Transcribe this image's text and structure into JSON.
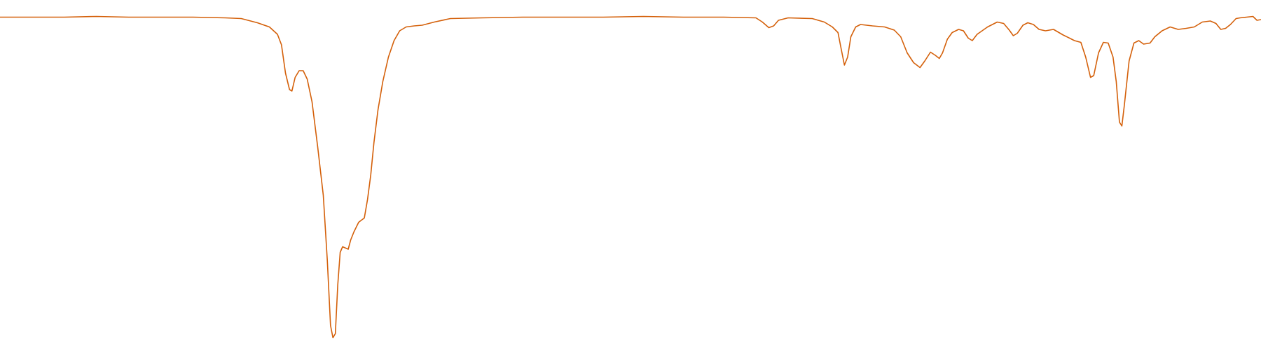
{
  "chart_data": {
    "type": "line",
    "x": [
      0,
      40,
      80,
      120,
      160,
      200,
      240,
      280,
      300,
      320,
      335,
      345,
      350,
      355,
      360,
      363,
      367,
      372,
      377,
      382,
      388,
      395,
      402,
      407,
      411,
      414,
      417,
      420,
      423,
      426,
      430,
      433,
      436,
      440,
      446,
      450,
      453,
      457,
      461,
      465,
      470,
      476,
      483,
      490,
      497,
      505,
      515,
      525,
      540,
      560,
      600,
      650,
      700,
      750,
      800,
      850,
      900,
      940,
      948,
      956,
      962,
      968,
      980,
      1010,
      1025,
      1035,
      1042,
      1046,
      1050,
      1054,
      1058,
      1064,
      1070,
      1085,
      1100,
      1112,
      1120,
      1128,
      1136,
      1144,
      1150,
      1157,
      1163,
      1168,
      1172,
      1178,
      1184,
      1192,
      1198,
      1204,
      1209,
      1215,
      1228,
      1240,
      1248,
      1255,
      1260,
      1265,
      1272,
      1278,
      1285,
      1292,
      1300,
      1310,
      1322,
      1330,
      1336,
      1344,
      1350,
      1356,
      1360,
      1366,
      1372,
      1378,
      1384,
      1388,
      1392,
      1395,
      1398,
      1404,
      1410,
      1416,
      1422,
      1430,
      1436,
      1445,
      1455,
      1465,
      1475,
      1485,
      1495,
      1505,
      1512,
      1518,
      1524,
      1530,
      1537,
      1542,
      1550,
      1558,
      1563,
      1568
    ],
    "series": [
      {
        "color": "#d4600a",
        "values": [
          95.1,
          95.1,
          95.1,
          95.3,
          95.1,
          95.1,
          95.1,
          94.9,
          94.7,
          93.5,
          92.3,
          90.2,
          87.2,
          79.1,
          74.4,
          74.0,
          77.9,
          79.8,
          79.8,
          77.4,
          70.9,
          58.1,
          44.2,
          25.6,
          7.0,
          3.5,
          4.7,
          18.6,
          27.9,
          29.5,
          29.1,
          28.8,
          31.4,
          33.7,
          36.5,
          37.2,
          37.7,
          43.0,
          50.0,
          59.3,
          68.6,
          76.7,
          83.7,
          88.4,
          91.2,
          92.3,
          92.6,
          92.8,
          93.7,
          94.7,
          94.9,
          95.1,
          95.1,
          95.1,
          95.3,
          95.1,
          95.1,
          94.9,
          93.7,
          92.1,
          92.6,
          94.2,
          94.9,
          94.7,
          93.7,
          92.3,
          90.7,
          86.0,
          81.4,
          83.7,
          89.5,
          92.3,
          93.0,
          92.6,
          92.3,
          91.4,
          89.5,
          84.9,
          82.1,
          80.7,
          82.6,
          85.1,
          84.2,
          83.3,
          84.9,
          88.8,
          90.7,
          91.6,
          91.2,
          89.1,
          88.4,
          90.2,
          92.3,
          93.7,
          93.3,
          91.4,
          89.8,
          90.5,
          92.8,
          93.5,
          93.0,
          91.6,
          91.2,
          91.6,
          90.0,
          89.1,
          88.4,
          87.9,
          83.7,
          77.9,
          78.4,
          84.9,
          87.9,
          87.7,
          83.7,
          76.7,
          65.1,
          64.0,
          69.8,
          82.6,
          87.7,
          88.4,
          87.4,
          87.7,
          89.5,
          91.2,
          92.3,
          91.6,
          91.9,
          92.3,
          93.7,
          94.0,
          93.3,
          91.6,
          91.9,
          93.0,
          94.7,
          94.9,
          95.1,
          95.3,
          94.2,
          94.4
        ]
      }
    ],
    "xlim": [
      0,
      1568
    ],
    "ylim": [
      0,
      100
    ]
  }
}
